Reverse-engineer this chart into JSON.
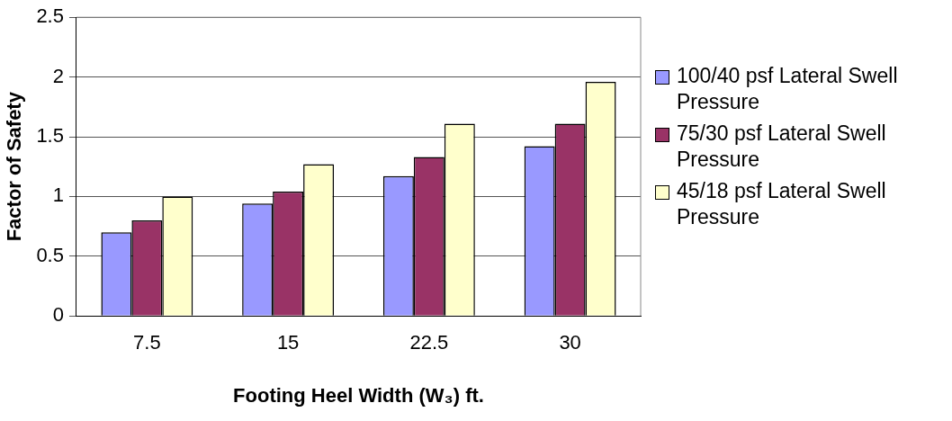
{
  "chart_data": {
    "type": "bar",
    "xlabel": "Footing Heel Width (W₃) ft.",
    "ylabel": "Factor of Safety",
    "categories": [
      "7.5",
      "15",
      "22.5",
      "30"
    ],
    "series": [
      {
        "name": "100/40 psf Lateral Swell Pressure",
        "color": "#9999ff",
        "values": [
          0.7,
          0.94,
          1.17,
          1.42
        ]
      },
      {
        "name": "75/30 psf Lateral Swell Pressure",
        "color": "#993366",
        "values": [
          0.8,
          1.04,
          1.33,
          1.61
        ]
      },
      {
        "name": "45/18 psf Lateral Swell Pressure",
        "color": "#ffffcc",
        "values": [
          1.0,
          1.27,
          1.61,
          1.96
        ]
      }
    ],
    "ylim": [
      0,
      2.5
    ],
    "yticks": [
      0,
      0.5,
      1,
      1.5,
      2,
      2.5
    ],
    "grid": "y",
    "legend": "right"
  }
}
